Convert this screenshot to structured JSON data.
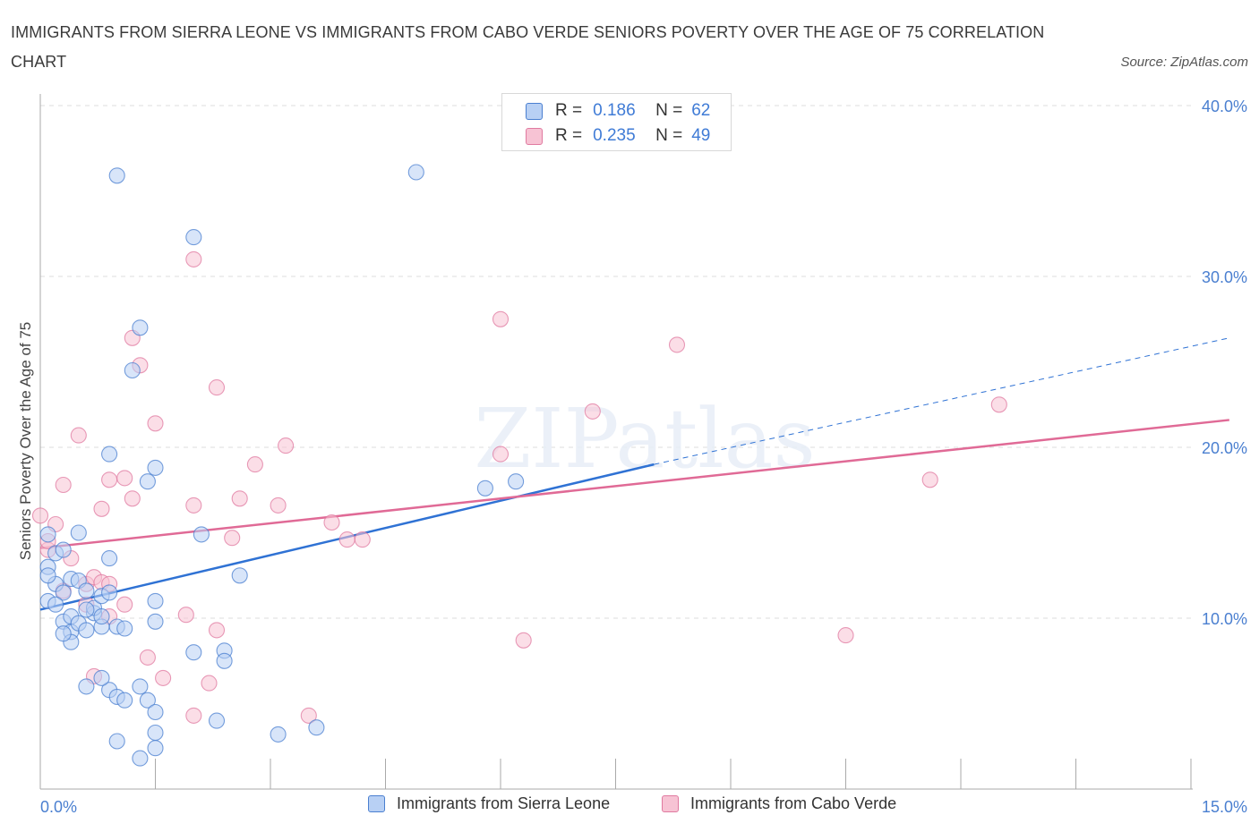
{
  "title": "IMMIGRANTS FROM SIERRA LEONE VS IMMIGRANTS FROM CABO VERDE SENIORS POVERTY OVER THE AGE OF 75 CORRELATION CHART",
  "source": "Source: ZipAtlas.com",
  "watermark": "ZIPatlas",
  "colors": {
    "blue": "#4a7fd0",
    "pink": "#e07aa0",
    "blue_fill": "#b8d0f4",
    "pink_fill": "#f7c3d4",
    "grid": "#dcdcdc"
  },
  "legend_top": {
    "r_label": "R =",
    "n_label": "N =",
    "rows": [
      {
        "r": "0.186",
        "n": "62"
      },
      {
        "r": "0.235",
        "n": "49"
      }
    ]
  },
  "legend_bottom": [
    "Immigrants from Sierra Leone",
    "Immigrants from Cabo Verde"
  ],
  "chart_data": {
    "type": "scatter",
    "ylabel": "Seniors Poverty Over the Age of 75",
    "x_tick_labels": [
      "0.0%",
      "15.0%"
    ],
    "y_tick_labels": [
      "10.0%",
      "20.0%",
      "30.0%",
      "40.0%"
    ],
    "y_ticks": [
      10,
      20,
      30,
      40
    ],
    "xlim": [
      0,
      15
    ],
    "ylim": [
      0,
      40
    ],
    "grid": true,
    "legend_placement": "top-center",
    "series": [
      {
        "name": "Immigrants from Sierra Leone",
        "color": "#4a7fd0",
        "points": [
          [
            0.1,
            14.9
          ],
          [
            0.1,
            13.0
          ],
          [
            0.1,
            11.0
          ],
          [
            0.2,
            12.0
          ],
          [
            0.3,
            11.5
          ],
          [
            0.2,
            13.8
          ],
          [
            0.3,
            14.0
          ],
          [
            0.3,
            9.8
          ],
          [
            0.4,
            9.2
          ],
          [
            0.4,
            10.1
          ],
          [
            0.4,
            12.3
          ],
          [
            0.5,
            9.7
          ],
          [
            0.5,
            12.2
          ],
          [
            0.6,
            11.6
          ],
          [
            0.6,
            9.3
          ],
          [
            0.7,
            10.3
          ],
          [
            0.7,
            10.6
          ],
          [
            0.8,
            11.3
          ],
          [
            0.8,
            9.5
          ],
          [
            0.9,
            11.5
          ],
          [
            1.0,
            9.5
          ],
          [
            0.2,
            10.8
          ],
          [
            0.4,
            8.6
          ],
          [
            0.6,
            10.5
          ],
          [
            0.8,
            10.1
          ],
          [
            0.5,
            15.0
          ],
          [
            0.9,
            13.5
          ],
          [
            0.9,
            5.8
          ],
          [
            0.6,
            6.0
          ],
          [
            0.8,
            6.5
          ],
          [
            1.0,
            5.4
          ],
          [
            1.3,
            6.0
          ],
          [
            1.4,
            5.2
          ],
          [
            1.5,
            4.5
          ],
          [
            1.1,
            5.2
          ],
          [
            1.0,
            2.8
          ],
          [
            1.5,
            3.3
          ],
          [
            1.5,
            2.4
          ],
          [
            2.3,
            4.0
          ],
          [
            3.1,
            3.2
          ],
          [
            3.6,
            3.6
          ],
          [
            2.0,
            8.0
          ],
          [
            2.4,
            8.1
          ],
          [
            2.4,
            7.5
          ],
          [
            1.5,
            9.8
          ],
          [
            1.5,
            11.0
          ],
          [
            2.6,
            12.5
          ],
          [
            2.1,
            14.9
          ],
          [
            1.4,
            18.0
          ],
          [
            1.5,
            18.8
          ],
          [
            0.9,
            19.6
          ],
          [
            1.2,
            24.5
          ],
          [
            1.3,
            27.0
          ],
          [
            2.0,
            32.3
          ],
          [
            1.0,
            35.9
          ],
          [
            4.9,
            36.1
          ],
          [
            5.8,
            17.6
          ],
          [
            6.2,
            18.0
          ],
          [
            1.3,
            1.8
          ],
          [
            0.1,
            12.5
          ],
          [
            0.3,
            9.1
          ],
          [
            1.1,
            9.4
          ]
        ]
      },
      {
        "name": "Immigrants from Cabo Verde",
        "color": "#e07aa0",
        "points": [
          [
            0.0,
            16.0
          ],
          [
            0.1,
            14.0
          ],
          [
            0.2,
            15.5
          ],
          [
            0.3,
            17.8
          ],
          [
            0.4,
            13.5
          ],
          [
            0.5,
            20.7
          ],
          [
            0.6,
            12.0
          ],
          [
            0.6,
            10.8
          ],
          [
            0.7,
            12.4
          ],
          [
            0.8,
            16.4
          ],
          [
            0.8,
            12.1
          ],
          [
            0.9,
            18.1
          ],
          [
            1.1,
            18.2
          ],
          [
            1.2,
            17.0
          ],
          [
            1.3,
            24.8
          ],
          [
            1.2,
            26.4
          ],
          [
            1.5,
            21.4
          ],
          [
            1.9,
            10.2
          ],
          [
            2.0,
            16.6
          ],
          [
            2.0,
            31.0
          ],
          [
            2.0,
            4.3
          ],
          [
            2.2,
            6.2
          ],
          [
            2.3,
            9.3
          ],
          [
            2.3,
            23.5
          ],
          [
            2.5,
            14.7
          ],
          [
            2.6,
            17.0
          ],
          [
            2.8,
            19.0
          ],
          [
            3.1,
            16.6
          ],
          [
            3.2,
            20.1
          ],
          [
            3.5,
            4.3
          ],
          [
            3.8,
            15.6
          ],
          [
            4.0,
            14.6
          ],
          [
            4.2,
            14.6
          ],
          [
            6.0,
            27.5
          ],
          [
            6.0,
            19.6
          ],
          [
            6.3,
            8.7
          ],
          [
            7.2,
            22.1
          ],
          [
            8.3,
            26.0
          ],
          [
            10.5,
            9.0
          ],
          [
            11.6,
            18.1
          ],
          [
            12.5,
            22.5
          ],
          [
            0.7,
            6.6
          ],
          [
            0.9,
            10.1
          ],
          [
            1.1,
            10.8
          ],
          [
            1.4,
            7.7
          ],
          [
            1.6,
            6.5
          ],
          [
            0.1,
            14.5
          ],
          [
            0.3,
            11.6
          ],
          [
            0.9,
            12.0
          ]
        ]
      }
    ],
    "trendlines": [
      {
        "series": "Immigrants from Sierra Leone",
        "x0": 0.0,
        "y0": 10.5,
        "x1": 8.0,
        "y1": 19.0,
        "dashed_extension_to_x": 15.5,
        "dashed_extension_y": 26.4
      },
      {
        "series": "Immigrants from Cabo Verde",
        "x0": 0.0,
        "y0": 14.1,
        "x1": 15.5,
        "y1": 21.6
      }
    ]
  }
}
